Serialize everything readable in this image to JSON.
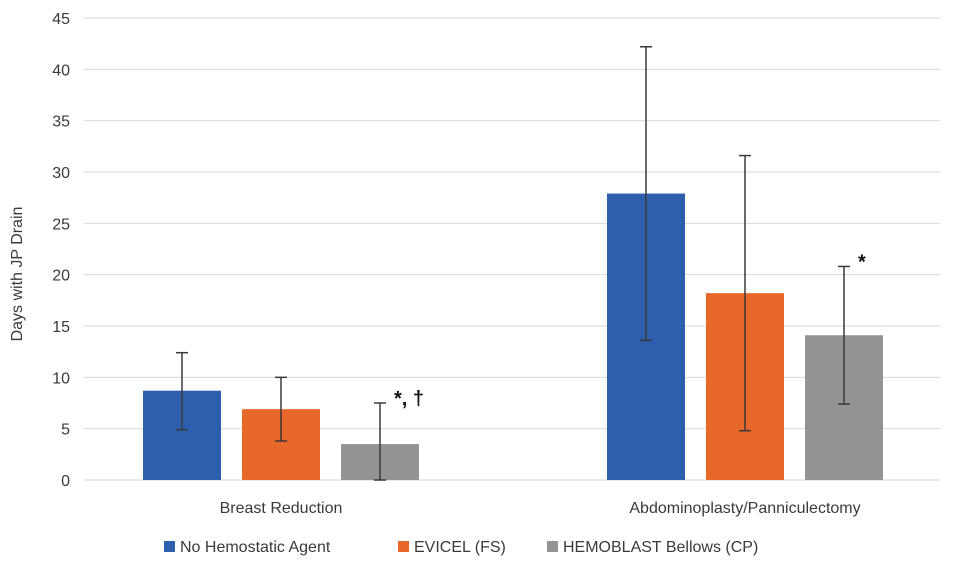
{
  "chart_data": {
    "type": "bar",
    "ylabel": "Days with JP Drain",
    "ylim": [
      0,
      45
    ],
    "ytick_step": 5,
    "grid": true,
    "legend_position": "bottom",
    "categories": [
      "Breast Reduction",
      "Abdominoplasty/Panniculectomy"
    ],
    "series": [
      {
        "name": "No Hemostatic Agent",
        "color": "#2e5fae",
        "values": [
          8.7,
          27.9
        ],
        "error_low": [
          4.9,
          13.6
        ],
        "error_high": [
          12.4,
          42.2
        ],
        "annotations": [
          "",
          ""
        ]
      },
      {
        "name": "EVICEL (FS)",
        "color": "#e8672a",
        "values": [
          6.9,
          18.2
        ],
        "error_low": [
          3.8,
          4.8
        ],
        "error_high": [
          10.0,
          31.6
        ],
        "annotations": [
          "",
          ""
        ]
      },
      {
        "name": "HEMOBLAST Bellows (CP)",
        "color": "#939393",
        "values": [
          3.5,
          14.1
        ],
        "error_low": [
          0,
          7.4
        ],
        "error_high": [
          7.5,
          20.8
        ],
        "annotations": [
          "*, †",
          "*"
        ]
      }
    ]
  }
}
